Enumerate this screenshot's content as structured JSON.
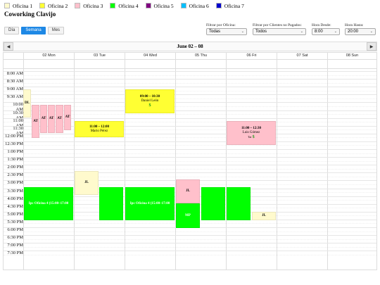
{
  "legend": [
    {
      "label": "Oficina 1",
      "color": "#fffacd"
    },
    {
      "label": "Oficina 2",
      "color": "#ffff33"
    },
    {
      "label": "Oficina 3",
      "color": "#ffc0cb"
    },
    {
      "label": "Oficina 4",
      "color": "#00ff00"
    },
    {
      "label": "Oficina 5",
      "color": "#800080"
    },
    {
      "label": "Oficina 6",
      "color": "#00bfff"
    },
    {
      "label": "Oficina 7",
      "color": "#0000cd"
    }
  ],
  "title": "Coworking Clavijo",
  "views": {
    "day": "Día",
    "week": "Semana",
    "month": "Mes"
  },
  "filters": {
    "office_label": "Filtrar por Oficina:",
    "office_value": "Todas",
    "clients_label": "Filtrar por Clientes no Pagados:",
    "clients_value": "Todos",
    "from_label": "Hora Desde:",
    "from_value": "8:00",
    "to_label": "Hora Hasta:",
    "to_value": "20:00"
  },
  "calendar": {
    "prev": "◀",
    "next": "▶",
    "range": "June 02 – 08",
    "days": [
      "02 Mon",
      "03 Tue",
      "04 Wed",
      "05 Thu",
      "06 Fri",
      "07 Sat",
      "08 Sun"
    ],
    "times": [
      "8:00 AM",
      "8:30 AM",
      "9:00 AM",
      "9:30 AM",
      "10:00 AM",
      "10:30 AM",
      "11:00 AM",
      "11:30 AM",
      "12:00 PM",
      "12:30 PM",
      "1:00 PM",
      "1:30 PM",
      "2:00 PM",
      "2:30 PM",
      "3:00 PM",
      "3:30 PM",
      "4:00 PM",
      "4:30 PM",
      "5:00 PM",
      "5:30 PM",
      "6:00 PM",
      "6:30 PM",
      "7:00 PM",
      "7:30 PM"
    ]
  },
  "events": {
    "mon_dl": "DL",
    "mon_at": "AT",
    "mon_green": "Ipc Oficina 4 (15:00–17:00",
    "tue_yellow_time": "11:00 – 12:00",
    "tue_yellow_name": "Mario Pérez",
    "tue_jl": "JL",
    "wed_yellow_time": "09:00 – 10:30",
    "wed_yellow_name": "Daniel León",
    "wed_green": "Ipc Oficina 4 (15:00–17:00",
    "thu_jl": "JL",
    "thu_mp": "MP",
    "fri_pink_time": "11:00 – 12:30",
    "fri_pink_name": "Luis Gómez",
    "fri_pink_extra": "Tar",
    "fri_jl": "JL",
    "money": "$"
  },
  "colors": {
    "accent": "#1e88e5",
    "oficina1": "#fffacd",
    "oficina2": "#ffff33",
    "oficina3": "#ffc0cb",
    "oficina4": "#00ff00"
  }
}
